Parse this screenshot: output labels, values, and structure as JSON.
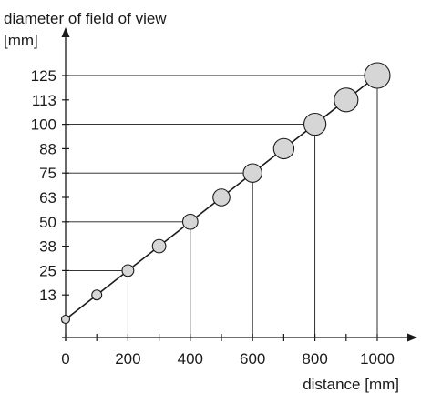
{
  "chart_data": {
    "type": "scatter",
    "ylabel_line1": "diameter of field of view",
    "ylabel_line2": "[mm]",
    "xlabel": "distance [mm]",
    "xlim": [
      0,
      1000
    ],
    "ylim": [
      0,
      125
    ],
    "x_ticks": [
      "0",
      "200",
      "400",
      "600",
      "800",
      "1000"
    ],
    "x_tick_values": [
      0,
      200,
      400,
      600,
      800,
      1000
    ],
    "y_ticks": [
      "13",
      "25",
      "38",
      "50",
      "63",
      "75",
      "88",
      "100",
      "113",
      "125"
    ],
    "y_tick_values": [
      12.5,
      25,
      37.5,
      50,
      62.5,
      75,
      87.5,
      100,
      112.5,
      125
    ],
    "grid": false,
    "trend_line": [
      [
        0,
        0
      ],
      [
        1000,
        125
      ]
    ],
    "points": [
      {
        "x": 0,
        "y": 0
      },
      {
        "x": 100,
        "y": 12.5
      },
      {
        "x": 200,
        "y": 25
      },
      {
        "x": 300,
        "y": 37.5
      },
      {
        "x": 400,
        "y": 50
      },
      {
        "x": 500,
        "y": 62.5
      },
      {
        "x": 600,
        "y": 75
      },
      {
        "x": 700,
        "y": 87.5
      },
      {
        "x": 800,
        "y": 100
      },
      {
        "x": 900,
        "y": 112.5
      },
      {
        "x": 1000,
        "y": 125
      }
    ],
    "guide_lines": [
      {
        "x": 200,
        "y": 25
      },
      {
        "x": 400,
        "y": 50
      },
      {
        "x": 600,
        "y": 75
      },
      {
        "x": 800,
        "y": 100
      },
      {
        "x": 1000,
        "y": 125
      }
    ],
    "marker_color": "#d6d6d6",
    "line_color": "#1a1a1a"
  }
}
